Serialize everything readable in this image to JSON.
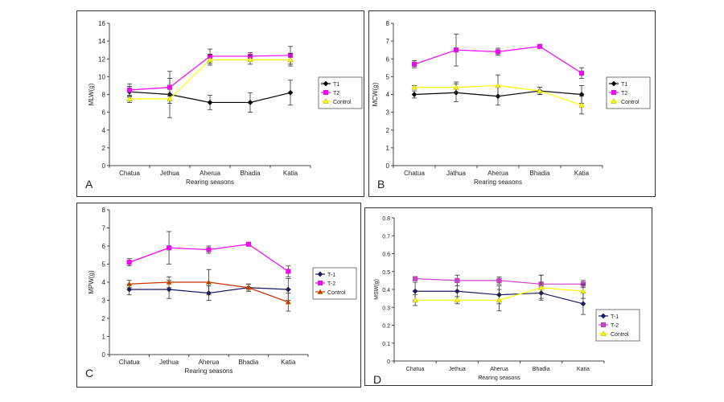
{
  "chart_data": [
    {
      "id": "A",
      "type": "line",
      "panel_label": "A",
      "xlabel": "Rearing seasons",
      "ylabel": "MLW(g)",
      "categories": [
        "Chatua",
        "Jethua",
        "Aherua",
        "Bhadia",
        "Katia"
      ],
      "ylim": [
        0,
        16
      ],
      "yticks": [
        "0",
        "2",
        "4",
        "6",
        "8",
        "10",
        "12",
        "14",
        "16"
      ],
      "legend_position": "right",
      "series": [
        {
          "name": "T1",
          "color": "#000000",
          "marker": "diamond",
          "values": [
            8.3,
            8.0,
            7.1,
            7.1,
            8.2
          ],
          "errors": [
            0.6,
            2.6,
            0.8,
            1.1,
            1.4
          ]
        },
        {
          "name": "T2",
          "color": "#ff00ff",
          "marker": "square",
          "values": [
            8.5,
            8.8,
            12.3,
            12.3,
            12.4
          ],
          "errors": [
            0.7,
            1.0,
            0.8,
            0.4,
            1.0
          ]
        },
        {
          "name": "Control",
          "color": "#ffff00",
          "marker": "triangle",
          "values": [
            7.5,
            7.5,
            11.9,
            11.9,
            11.9
          ],
          "errors": [
            0.4,
            0.5,
            0.6,
            0.5,
            0.7
          ]
        }
      ]
    },
    {
      "id": "B",
      "type": "line",
      "panel_label": "B",
      "xlabel": "Rearing seasons",
      "ylabel": "MCW(g)",
      "categories": [
        "Chatua",
        "Jathua",
        "Aherua",
        "Bhadia",
        "Katia"
      ],
      "ylim": [
        0,
        8
      ],
      "yticks": [
        "0",
        "1",
        "2",
        "3",
        "4",
        "5",
        "6",
        "7",
        "8"
      ],
      "legend_position": "right",
      "series": [
        {
          "name": "T1",
          "color": "#000000",
          "marker": "diamond",
          "values": [
            4.0,
            4.1,
            3.9,
            4.2,
            4.0
          ],
          "errors": [
            0.2,
            0.5,
            0.5,
            0.2,
            0.5
          ]
        },
        {
          "name": "T2",
          "color": "#ff00ff",
          "marker": "square",
          "values": [
            5.7,
            6.5,
            6.4,
            6.7,
            5.2
          ],
          "errors": [
            0.2,
            0.9,
            0.2,
            0.1,
            0.3
          ]
        },
        {
          "name": "Control",
          "color": "#ffff00",
          "marker": "triangle",
          "values": [
            4.4,
            4.4,
            4.5,
            4.2,
            3.4
          ],
          "errors": [
            0.1,
            0.3,
            0.6,
            0.2,
            0.5
          ]
        }
      ]
    },
    {
      "id": "C",
      "type": "line",
      "panel_label": "C",
      "xlabel": "Rearing seasons",
      "ylabel": "MPW(g)",
      "categories": [
        "Chatua",
        "Jethua",
        "Aherua",
        "Bhadia",
        "Katia"
      ],
      "ylim": [
        0,
        8
      ],
      "yticks": [
        "0",
        "1",
        "2",
        "3",
        "4",
        "5",
        "6",
        "7",
        "8"
      ],
      "legend_position": "right",
      "series": [
        {
          "name": "T-1",
          "color": "#1a1a66",
          "marker": "diamond",
          "values": [
            3.6,
            3.6,
            3.4,
            3.7,
            3.6
          ],
          "errors": [
            0.3,
            0.5,
            0.4,
            0.2,
            0.6
          ]
        },
        {
          "name": "T-2",
          "color": "#ff00ff",
          "marker": "square",
          "values": [
            5.1,
            5.9,
            5.8,
            6.1,
            4.6
          ],
          "errors": [
            0.2,
            0.9,
            0.2,
            0.05,
            0.3
          ]
        },
        {
          "name": "Control",
          "color": "#cc3300",
          "marker": "triangle",
          "values": [
            3.9,
            4.0,
            4.0,
            3.7,
            2.9
          ],
          "errors": [
            0.2,
            0.3,
            0.7,
            0.2,
            0.5
          ]
        }
      ]
    },
    {
      "id": "D",
      "type": "line",
      "panel_label": "D",
      "xlabel": "Rearing seasons",
      "ylabel": "MSW(g)",
      "categories": [
        "Chatua",
        "Jethua",
        "Aherua",
        "Bhadia",
        "Katia"
      ],
      "ylim": [
        0,
        0.8
      ],
      "yticks": [
        "0",
        "0.1",
        "0.2",
        "0.3",
        "0.4",
        "0.5",
        "0.6",
        "0.7",
        "0.8"
      ],
      "legend_position": "right",
      "series": [
        {
          "name": "T-1",
          "color": "#1a1a66",
          "marker": "diamond",
          "values": [
            0.39,
            0.39,
            0.37,
            0.38,
            0.32
          ],
          "errors": [
            0.05,
            0.05,
            0.05,
            0.03,
            0.06
          ]
        },
        {
          "name": "T-2",
          "color": "#cc44cc",
          "marker": "square",
          "values": [
            0.46,
            0.45,
            0.45,
            0.43,
            0.43
          ],
          "errors": [
            0.01,
            0.03,
            0.02,
            0.05,
            0.02
          ]
        },
        {
          "name": "Control",
          "color": "#ffff00",
          "marker": "triangle",
          "values": [
            0.34,
            0.34,
            0.34,
            0.41,
            0.39
          ],
          "errors": [
            0.03,
            0.02,
            0.06,
            0.07,
            0.04
          ]
        }
      ]
    }
  ]
}
